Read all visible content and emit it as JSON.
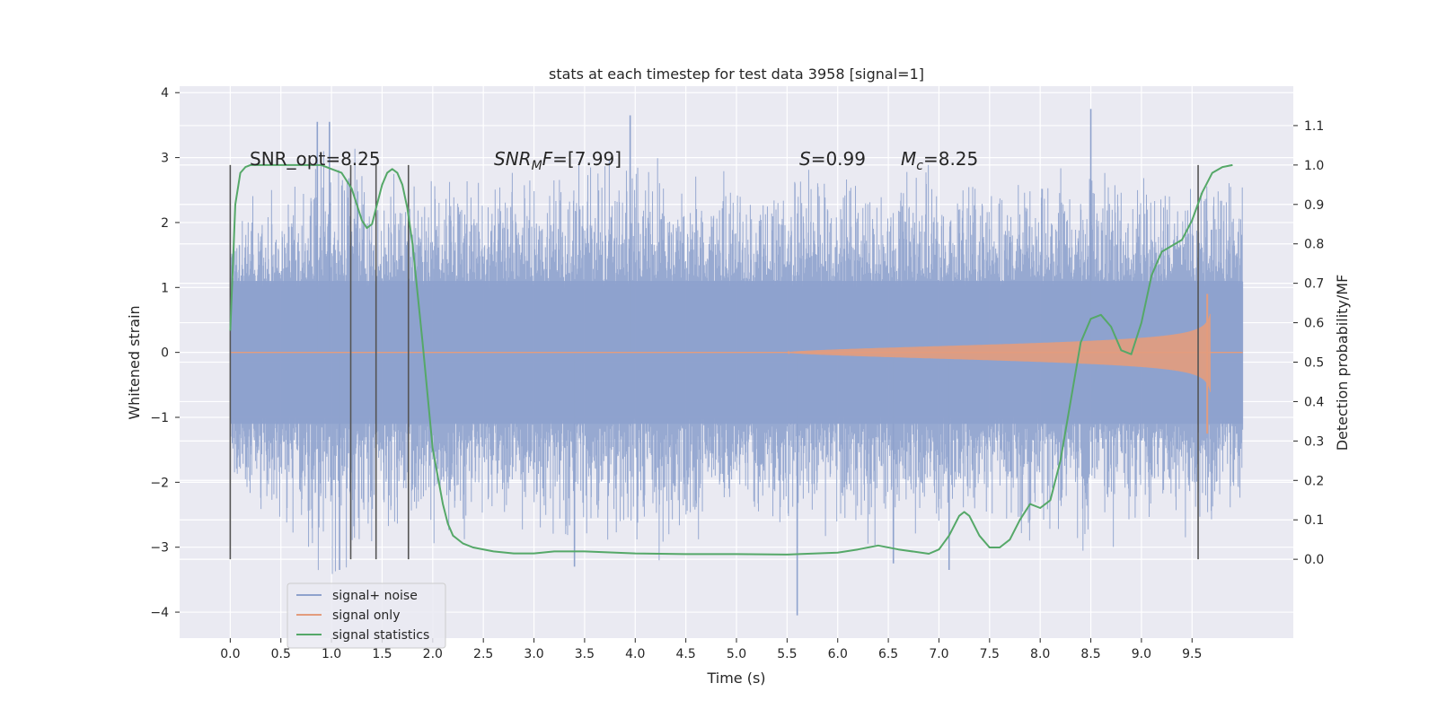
{
  "chart_data": {
    "type": "line",
    "title": "stats at each timestep for test data 3958 [signal=1]",
    "xlabel": "Time (s)",
    "ylabel": "Whitened strain",
    "y2label": "Detection probability/MF",
    "xlim": [
      -0.5,
      10.5
    ],
    "ylim": [
      -4.4,
      4.1
    ],
    "y2lim": [
      -0.2,
      1.2
    ],
    "x_ticks": [
      "0.0",
      "0.5",
      "1.0",
      "1.5",
      "2.0",
      "2.5",
      "3.0",
      "3.5",
      "4.0",
      "4.5",
      "5.0",
      "5.5",
      "6.0",
      "6.5",
      "7.0",
      "7.5",
      "8.0",
      "8.5",
      "9.0",
      "9.5"
    ],
    "y_ticks": [
      "4",
      "3",
      "2",
      "1",
      "0",
      "−1",
      "−2",
      "−3",
      "−4"
    ],
    "y2_ticks": [
      "1.1",
      "1.0",
      "0.9",
      "0.8",
      "0.7",
      "0.6",
      "0.5",
      "0.4",
      "0.3",
      "0.2",
      "0.1",
      "0.0"
    ],
    "grid": true,
    "legend_position": "lower-left",
    "colors": {
      "background": "#eaeaf2",
      "grid": "#ffffff",
      "noise": "#8ea2cd",
      "signal": "#e39c7d",
      "stat": "#55a868",
      "vline": "#555555"
    },
    "annotations": {
      "snr_opt": "SNR_opt=8.25",
      "snr_mf_a": "SNR",
      "snr_mf_sub": "M",
      "snr_mf_b": "F=[7.99]",
      "s_val_a": "S",
      "s_val_b": "=0.99",
      "mc_a": "M",
      "mc_sub": "c",
      "mc_b": "=8.25"
    },
    "vertical_lines_x": [
      0.0,
      1.19,
      1.44,
      1.76,
      9.56
    ],
    "series": [
      {
        "name": "signal+ noise",
        "axis": "left",
        "style": "noise-band",
        "x_range": [
          0.0,
          10.0
        ],
        "core_amplitude": 1.1,
        "envelope": [
          [
            0.0,
            2.0
          ],
          [
            0.5,
            2.4
          ],
          [
            1.0,
            3.2
          ],
          [
            1.5,
            2.5
          ],
          [
            2.0,
            2.6
          ],
          [
            2.5,
            2.5
          ],
          [
            3.0,
            2.6
          ],
          [
            3.5,
            2.7
          ],
          [
            4.0,
            3.0
          ],
          [
            4.5,
            2.6
          ],
          [
            5.0,
            2.5
          ],
          [
            5.5,
            2.6
          ],
          [
            6.0,
            2.6
          ],
          [
            6.5,
            2.7
          ],
          [
            7.0,
            2.6
          ],
          [
            7.5,
            2.5
          ],
          [
            8.0,
            2.6
          ],
          [
            8.5,
            2.9
          ],
          [
            9.0,
            2.5
          ],
          [
            9.5,
            2.5
          ],
          [
            10.0,
            2.4
          ]
        ],
        "spikes": [
          [
            0.86,
            3.55
          ],
          [
            0.98,
            3.55
          ],
          [
            1.08,
            -3.35
          ],
          [
            3.4,
            -3.3
          ],
          [
            3.95,
            3.65
          ],
          [
            5.6,
            -4.05
          ],
          [
            6.55,
            -3.25
          ],
          [
            7.1,
            -3.35
          ],
          [
            8.5,
            3.75
          ]
        ]
      },
      {
        "name": "signal only",
        "axis": "left",
        "style": "chirp",
        "t_start": 5.5,
        "t_end": 9.68,
        "peak": 0.9,
        "trough": -1.25
      },
      {
        "name": "signal statistics",
        "axis": "right",
        "style": "line",
        "x": [
          0.0,
          0.05,
          0.1,
          0.15,
          0.2,
          0.3,
          0.5,
          0.7,
          0.9,
          1.0,
          1.1,
          1.2,
          1.3,
          1.35,
          1.4,
          1.45,
          1.5,
          1.55,
          1.6,
          1.65,
          1.7,
          1.75,
          1.8,
          1.9,
          2.0,
          2.1,
          2.15,
          2.2,
          2.3,
          2.4,
          2.6,
          2.8,
          3.0,
          3.2,
          3.5,
          4.0,
          4.5,
          5.0,
          5.5,
          6.0,
          6.2,
          6.4,
          6.6,
          6.9,
          7.0,
          7.1,
          7.2,
          7.25,
          7.3,
          7.4,
          7.5,
          7.6,
          7.7,
          7.8,
          7.9,
          8.0,
          8.1,
          8.2,
          8.3,
          8.4,
          8.5,
          8.6,
          8.7,
          8.8,
          8.9,
          9.0,
          9.1,
          9.2,
          9.4,
          9.5,
          9.6,
          9.7,
          9.8,
          9.9
        ],
        "values": [
          0.58,
          0.9,
          0.98,
          0.995,
          1.0,
          1.0,
          1.0,
          1.0,
          1.0,
          0.99,
          0.98,
          0.94,
          0.86,
          0.84,
          0.85,
          0.9,
          0.95,
          0.98,
          0.99,
          0.98,
          0.95,
          0.89,
          0.8,
          0.55,
          0.28,
          0.14,
          0.09,
          0.06,
          0.04,
          0.03,
          0.02,
          0.015,
          0.015,
          0.02,
          0.02,
          0.015,
          0.013,
          0.013,
          0.012,
          0.017,
          0.025,
          0.035,
          0.025,
          0.014,
          0.025,
          0.06,
          0.11,
          0.12,
          0.11,
          0.06,
          0.03,
          0.03,
          0.05,
          0.1,
          0.14,
          0.13,
          0.15,
          0.25,
          0.4,
          0.55,
          0.61,
          0.62,
          0.59,
          0.53,
          0.52,
          0.6,
          0.72,
          0.78,
          0.81,
          0.86,
          0.93,
          0.98,
          0.995,
          1.0
        ]
      }
    ]
  }
}
